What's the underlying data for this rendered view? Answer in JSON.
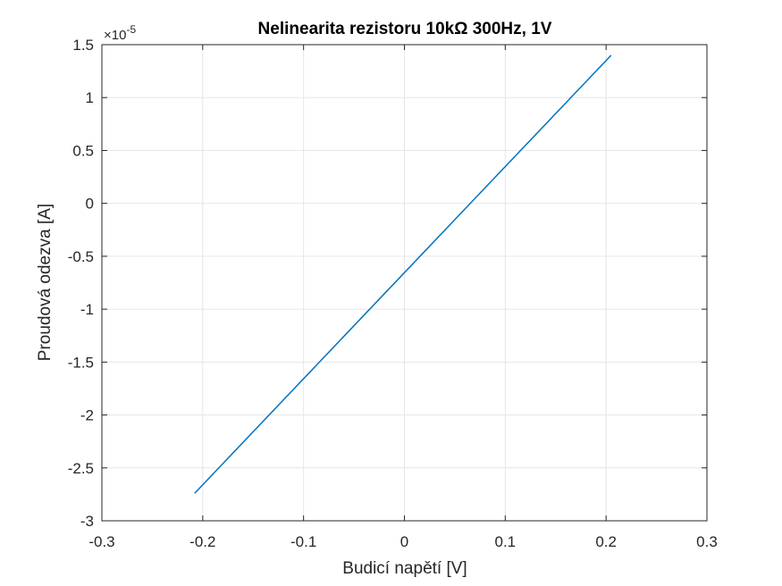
{
  "chart_data": {
    "type": "line",
    "title": "Nelinearita rezistoru 10kΩ 300Hz, 1V",
    "xlabel": "Budicí napětí [V]",
    "ylabel": "Proudová odezva [A]",
    "xlim": [
      -0.3,
      0.3
    ],
    "ylim": [
      -3,
      1.5
    ],
    "y_exponent_label": "×10",
    "y_exponent_power": "-5",
    "xticks": [
      -0.3,
      -0.2,
      -0.1,
      0,
      0.1,
      0.2,
      0.3
    ],
    "xtick_labels": [
      "-0.3",
      "-0.2",
      "-0.1",
      "0",
      "0.1",
      "0.2",
      "0.3"
    ],
    "yticks": [
      -3,
      -2.5,
      -2,
      -1.5,
      -1,
      -0.5,
      0,
      0.5,
      1,
      1.5
    ],
    "ytick_labels": [
      "-3",
      "-2.5",
      "-2",
      "-1.5",
      "-1",
      "-0.5",
      "0",
      "0.5",
      "1",
      "1.5"
    ],
    "grid": true,
    "series": [
      {
        "color": "#0072BD",
        "x": [
          -0.208,
          0.205
        ],
        "y": [
          -2.74,
          1.4
        ]
      }
    ]
  }
}
